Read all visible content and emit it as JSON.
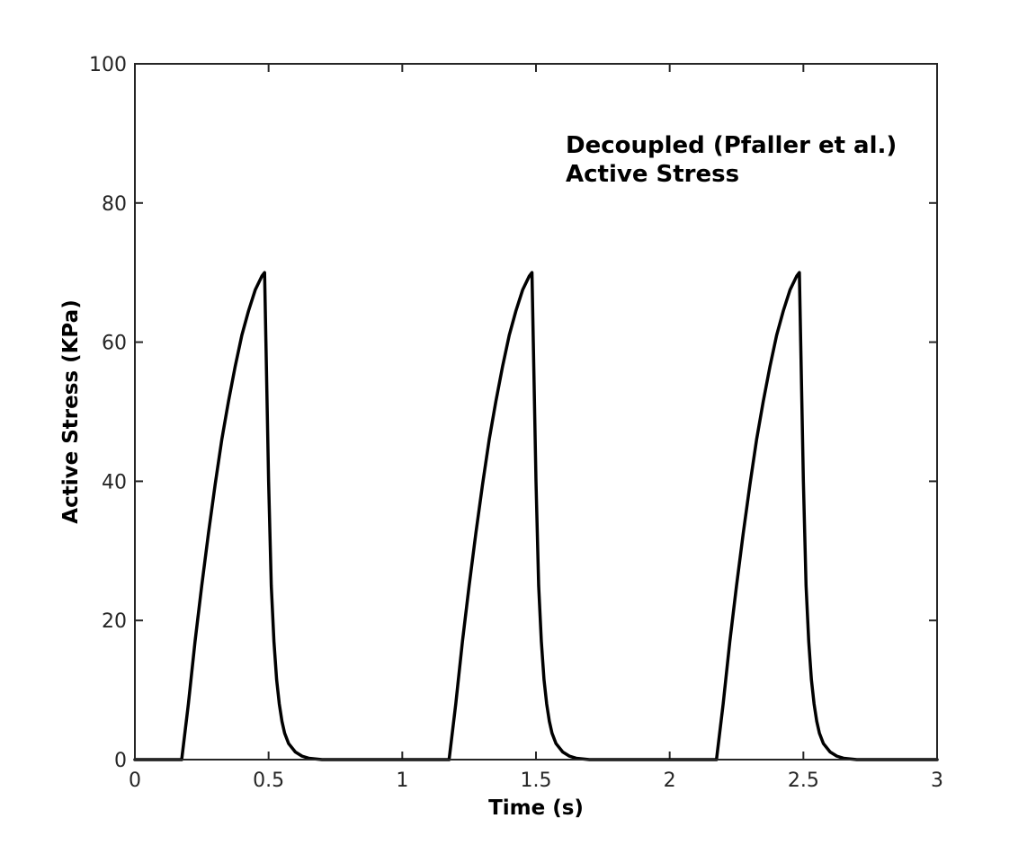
{
  "chart_data": {
    "type": "line",
    "xlabel": "Time (s)",
    "ylabel": "Active Stress (KPa)",
    "xlim": [
      0,
      3
    ],
    "ylim": [
      0,
      100
    ],
    "xticks": [
      0,
      0.5,
      1,
      1.5,
      2,
      2.5,
      3
    ],
    "xtick_labels": [
      "0",
      "0.5",
      "1",
      "1.5",
      "2",
      "2.5",
      "3"
    ],
    "yticks": [
      0,
      20,
      40,
      60,
      80,
      100
    ],
    "ytick_labels": [
      "0",
      "20",
      "40",
      "60",
      "80",
      "100"
    ],
    "grid": false,
    "annotation": [
      "Decoupled (Pfaller et al.)",
      "Active Stress"
    ],
    "line_color": "#000000",
    "series": [
      {
        "x": [
          0,
          0.175,
          0.2,
          0.225,
          0.25,
          0.275,
          0.3,
          0.325,
          0.35,
          0.375,
          0.4,
          0.425,
          0.45,
          0.475,
          0.485,
          0.5,
          0.51,
          0.52,
          0.53,
          0.54,
          0.55,
          0.56,
          0.575,
          0.6,
          0.625,
          0.65,
          0.7,
          1.0,
          1.175,
          1.2,
          1.225,
          1.25,
          1.275,
          1.3,
          1.325,
          1.35,
          1.375,
          1.4,
          1.425,
          1.45,
          1.475,
          1.485,
          1.5,
          1.51,
          1.52,
          1.53,
          1.54,
          1.55,
          1.56,
          1.575,
          1.6,
          1.625,
          1.65,
          1.7,
          2.0,
          2.175,
          2.2,
          2.225,
          2.25,
          2.275,
          2.3,
          2.325,
          2.35,
          2.375,
          2.4,
          2.425,
          2.45,
          2.475,
          2.485,
          2.5,
          2.51,
          2.52,
          2.53,
          2.54,
          2.55,
          2.56,
          2.575,
          2.6,
          2.625,
          2.65,
          2.7,
          3.0
        ],
        "y": [
          0,
          0,
          8,
          17,
          25,
          32.5,
          39.5,
          46,
          51.5,
          56.5,
          61,
          64.5,
          67.5,
          69.5,
          70,
          40,
          25,
          17,
          11.5,
          8,
          5.5,
          3.8,
          2.3,
          1.1,
          0.5,
          0.2,
          0,
          0,
          0,
          8,
          17,
          25,
          32.5,
          39.5,
          46,
          51.5,
          56.5,
          61,
          64.5,
          67.5,
          69.5,
          70,
          40,
          25,
          17,
          11.5,
          8,
          5.5,
          3.8,
          2.3,
          1.1,
          0.5,
          0.2,
          0,
          0,
          0,
          8,
          17,
          25,
          32.5,
          39.5,
          46,
          51.5,
          56.5,
          61,
          64.5,
          67.5,
          69.5,
          70,
          40,
          25,
          17,
          11.5,
          8,
          5.5,
          3.8,
          2.3,
          1.1,
          0.5,
          0.2,
          0,
          0
        ]
      }
    ]
  }
}
